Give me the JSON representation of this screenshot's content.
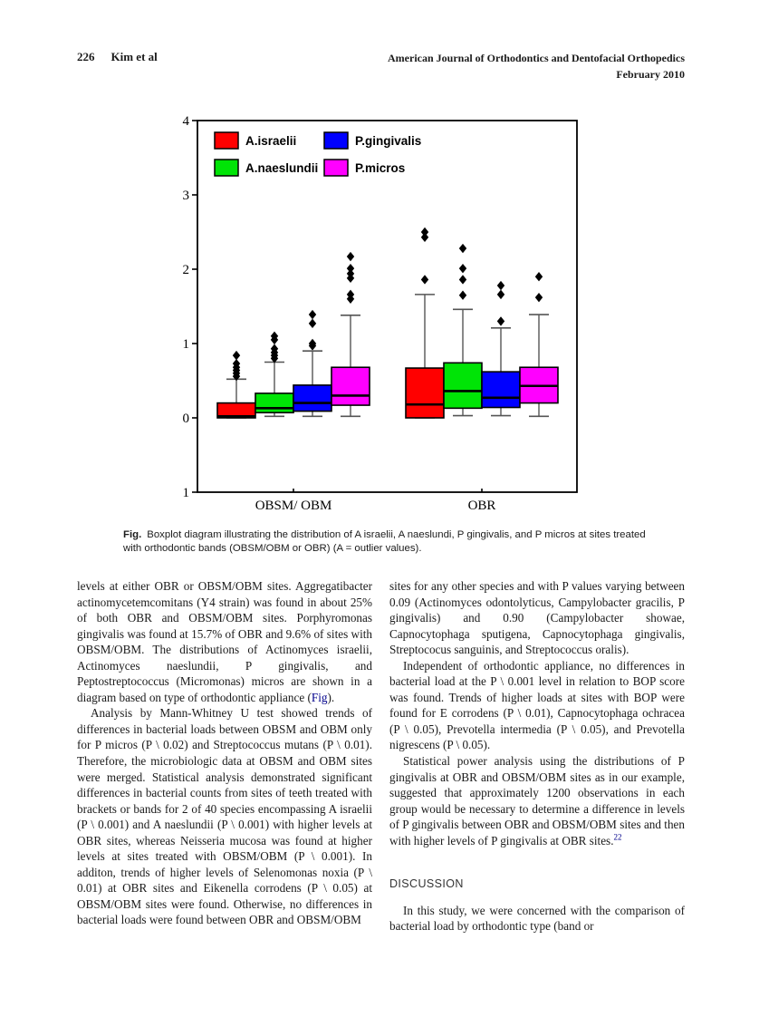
{
  "header": {
    "page_number": "226",
    "authors": "Kim et al",
    "journal": "American Journal of Orthodontics and Dentofacial Orthopedics",
    "issue": "February 2010"
  },
  "caption": {
    "label": "Fig.",
    "text": "Boxplot diagram illustrating the distribution of A israelii, A naeslundi, P gingivalis, and P micros at sites treated with orthodontic bands (OBSM/OBM or OBR) (A = outlier values)."
  },
  "chart_data": {
    "type": "boxplot",
    "title": "",
    "xlabel": "",
    "ylabel": "",
    "ylim": [
      -1,
      4
    ],
    "yticks": [
      -1,
      0,
      1,
      2,
      3,
      4
    ],
    "grid": false,
    "legend_position": "top-left-inside",
    "groups": [
      "OBSM/ OBM",
      "OBR"
    ],
    "series": [
      {
        "name": "A.israelii",
        "color": "#ff0000",
        "boxes": [
          {
            "group": "OBSM/ OBM",
            "whisker_low": 0.0,
            "q1": 0.0,
            "median": 0.02,
            "q3": 0.2,
            "whisker_high": 0.52,
            "outliers": [
              0.56,
              0.6,
              0.64,
              0.68,
              0.73,
              0.84
            ]
          },
          {
            "group": "OBR",
            "whisker_low": 0.0,
            "q1": 0.0,
            "median": 0.18,
            "q3": 0.67,
            "whisker_high": 1.66,
            "outliers": [
              1.86,
              2.43,
              2.5
            ]
          }
        ]
      },
      {
        "name": "A.naeslundii",
        "color": "#00e406",
        "boxes": [
          {
            "group": "OBSM/ OBM",
            "whisker_low": 0.02,
            "q1": 0.07,
            "median": 0.13,
            "q3": 0.33,
            "whisker_high": 0.75,
            "outliers": [
              0.8,
              0.84,
              0.88,
              0.93,
              1.05,
              1.1
            ]
          },
          {
            "group": "OBR",
            "whisker_low": 0.03,
            "q1": 0.13,
            "median": 0.36,
            "q3": 0.74,
            "whisker_high": 1.46,
            "outliers": [
              1.65,
              1.86,
              2.01,
              2.28
            ]
          }
        ]
      },
      {
        "name": "P.gingivalis",
        "color": "#0000ff",
        "boxes": [
          {
            "group": "OBSM/ OBM",
            "whisker_low": 0.02,
            "q1": 0.09,
            "median": 0.2,
            "q3": 0.44,
            "whisker_high": 0.9,
            "outliers": [
              0.97,
              1.0,
              1.27,
              1.39
            ]
          },
          {
            "group": "OBR",
            "whisker_low": 0.03,
            "q1": 0.14,
            "median": 0.27,
            "q3": 0.62,
            "whisker_high": 1.21,
            "outliers": [
              1.3,
              1.66,
              1.78
            ]
          }
        ]
      },
      {
        "name": "P.micros",
        "color": "#ff00ff",
        "boxes": [
          {
            "group": "OBSM/ OBM",
            "whisker_low": 0.02,
            "q1": 0.17,
            "median": 0.3,
            "q3": 0.68,
            "whisker_high": 1.38,
            "outliers": [
              1.6,
              1.66,
              1.88,
              1.94,
              2.01,
              2.17
            ]
          },
          {
            "group": "OBR",
            "whisker_low": 0.02,
            "q1": 0.2,
            "median": 0.43,
            "q3": 0.68,
            "whisker_high": 1.39,
            "outliers": [
              1.62,
              1.9
            ]
          }
        ]
      }
    ]
  },
  "columns": {
    "left": [
      {
        "indent": false,
        "segments": [
          {
            "s": "levels at either OBR or OBSM/OBM sites. Aggregatibacter actinomycetemcomitans (Y4 strain) was found in about 25% of both OBR and OBSM/OBM sites. Porphyromonas gingivalis was found at 15.7% of OBR and 9.6% of sites with OBSM/OBM. The distributions of Actinomyces israelii, Actinomyces naeslundii, P gingivalis, and Peptostreptococcus (Micromonas) micros are shown in a diagram based on type of orthodontic appliance ("
          },
          {
            "s": "Fig",
            "link": true,
            "name": "figure-reference-link"
          },
          {
            "s": ")."
          }
        ]
      },
      {
        "indent": true,
        "segments": [
          {
            "s": "Analysis by Mann-Whitney U test showed trends of differences in bacterial loads between OBSM and OBM only for P micros (P \\ 0.02) and Streptococcus mutans (P \\ 0.01). Therefore, the microbiologic data at OBSM and OBM sites were merged. Statistical analysis demonstrated significant differences in bacterial counts from sites of teeth treated with brackets or bands for 2 of 40 species encompassing A israelii (P \\ 0.001) and A naeslundii (P \\ 0.001) with higher levels at OBR sites, whereas Neisseria mucosa was found at higher levels at sites treated with OBSM/OBM (P \\ 0.001). In additon, trends of higher levels of Selenomonas noxia (P \\ 0.01) at OBR sites and Eikenella corrodens (P \\ 0.05) at OBSM/OBM sites were found. Otherwise, no differences in bacterial loads were found between OBR and OBSM/OBM"
          }
        ]
      }
    ],
    "right": [
      {
        "indent": false,
        "segments": [
          {
            "s": "sites for any other species and with P values varying between 0.09 (Actinomyces odontolyticus, Campylobacter gracilis, P gingivalis) and 0.90 (Campylobacter showae, Capnocytophaga sputigena, Capnocytophaga gingivalis, Streptococus sanguinis, and Streptococcus oralis)."
          }
        ]
      },
      {
        "indent": true,
        "segments": [
          {
            "s": "Independent of orthodontic appliance, no differences in bacterial load at the P \\ 0.001 level in relation to BOP score was found. Trends of higher loads at sites with BOP were found for E corrodens (P \\ 0.01), Capnocytophaga ochracea (P \\ 0.05), Prevotella intermedia (P \\ 0.05), and Prevotella nigrescens (P \\ 0.05)."
          }
        ]
      },
      {
        "indent": true,
        "segments": [
          {
            "s": "Statistical power analysis using the distributions of P gingivalis at OBR and OBSM/OBM sites as in our example, suggested that approximately 1200 observations in each group would be necessary to determine a difference in levels of P gingivalis between OBR and OBSM/OBM sites and then with higher levels of P gingivalis at OBR sites."
          },
          {
            "s": "22",
            "link": true,
            "sup": true,
            "name": "reference-22-link"
          }
        ]
      },
      {
        "heading": "DISCUSSION"
      },
      {
        "indent": true,
        "segments": [
          {
            "s": "In this study, we were concerned with the comparison of bacterial load by orthodontic type (band or"
          }
        ]
      }
    ]
  }
}
